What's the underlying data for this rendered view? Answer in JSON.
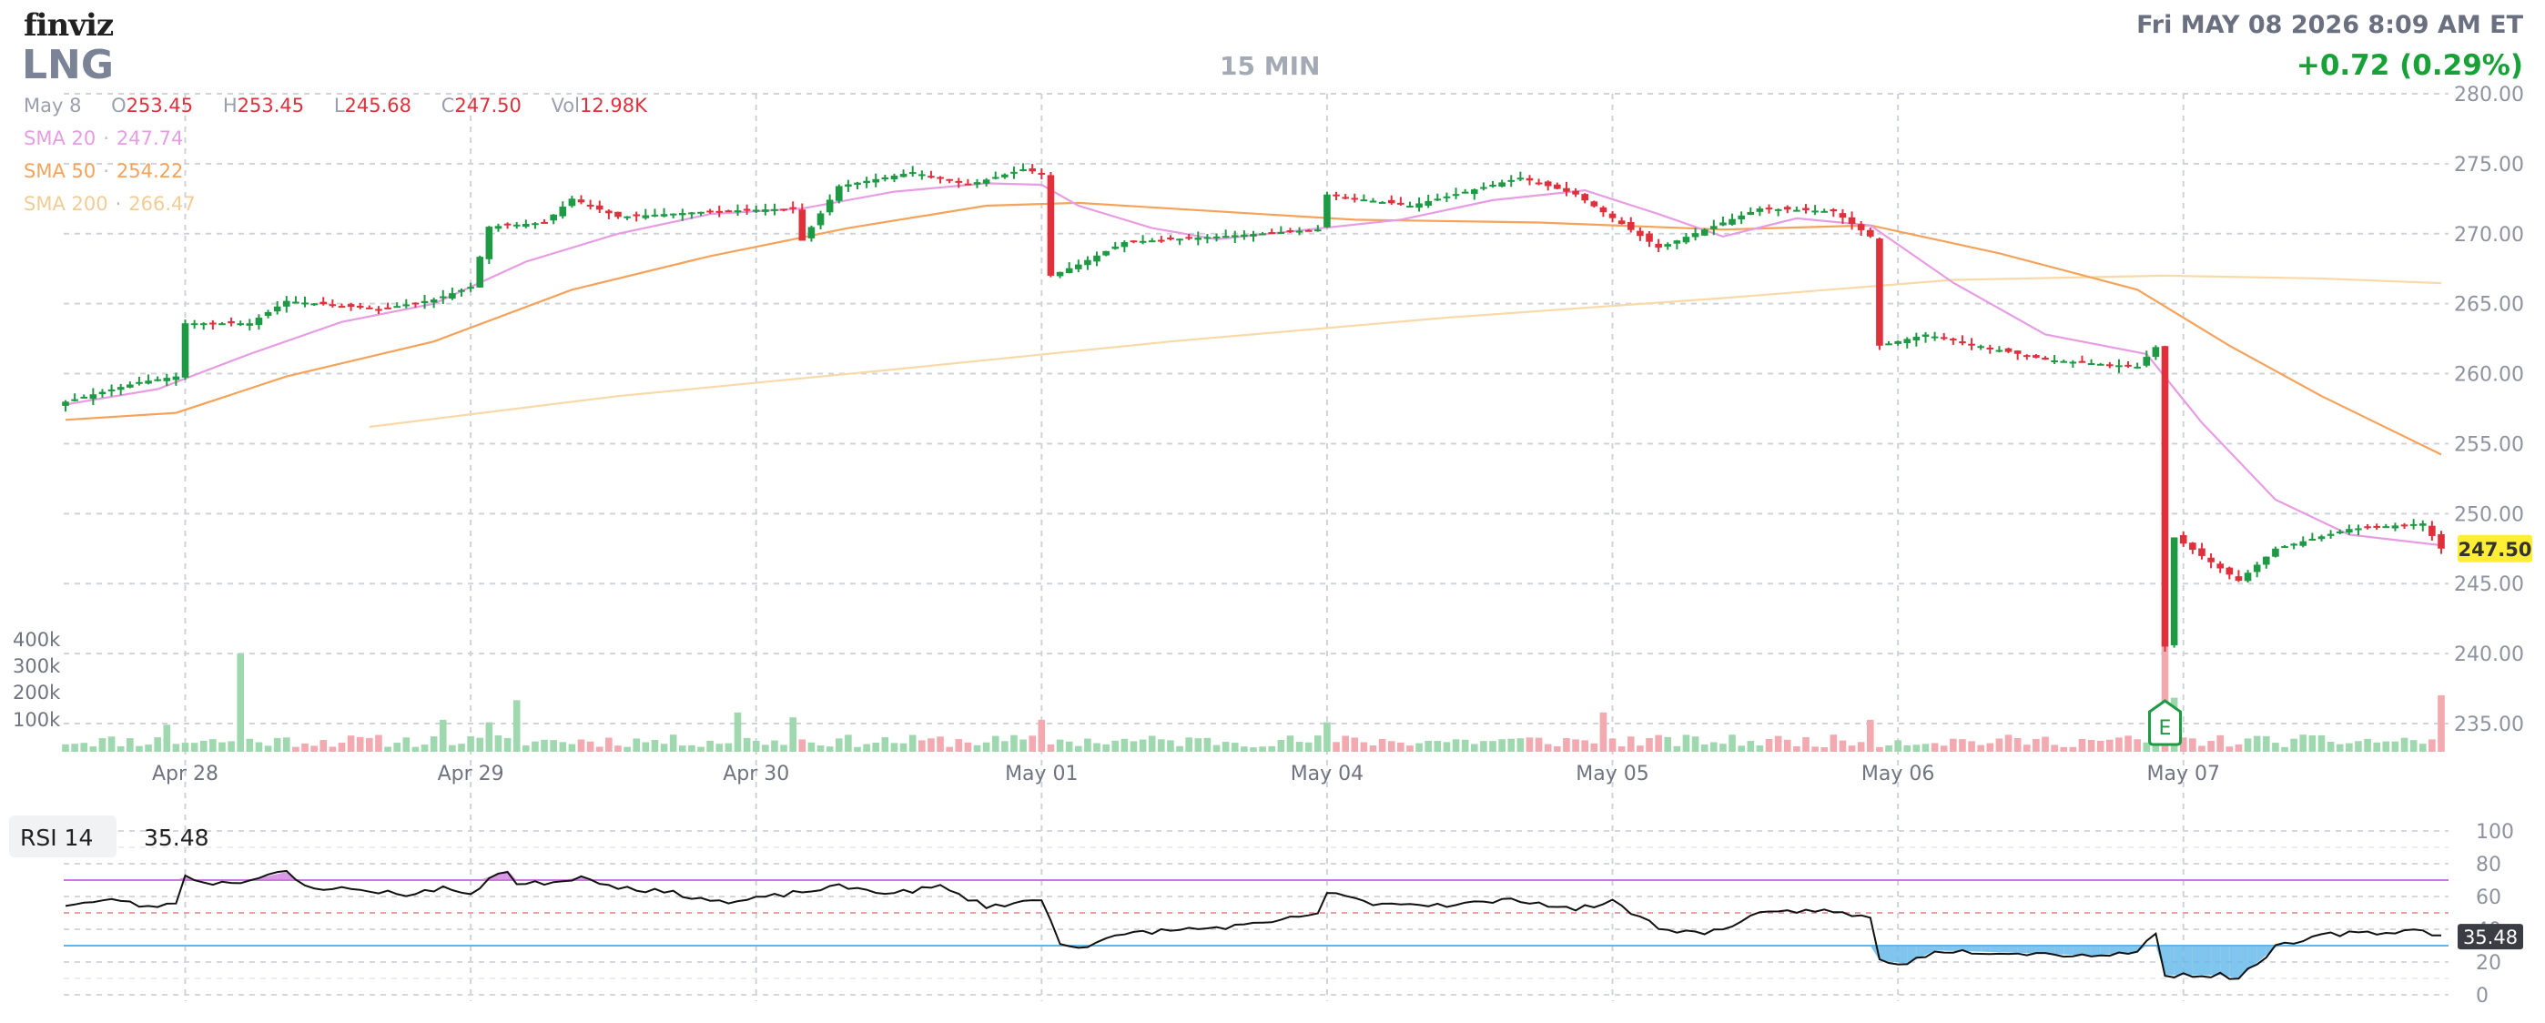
{
  "header": {
    "logo": "finviz",
    "ticker": "LNG",
    "interval": "15 MIN",
    "datetime": "Fri MAY 08 2026 8:09 AM ET",
    "change": "+0.72 (0.29%)",
    "ohlc": {
      "date": "May 8",
      "o_label": "O",
      "o": "253.45",
      "h_label": "H",
      "h": "253.45",
      "l_label": "L",
      "l": "245.68",
      "c_label": "C",
      "c": "247.50",
      "vol_label": "Vol",
      "vol": "12.98K"
    },
    "sma20": {
      "label": "SMA 20",
      "value": "247.74",
      "color": "#e79ce3"
    },
    "sma50": {
      "label": "SMA 50",
      "value": "254.22",
      "color": "#f5a25a"
    },
    "sma200": {
      "label": "SMA 200",
      "value": "266.47",
      "color": "#f9d9a8"
    }
  },
  "rsi": {
    "label": "RSI 14",
    "value": "35.48"
  },
  "colors": {
    "up": "#1d9a43",
    "down": "#e0303c",
    "vol_up": "#9fd8af",
    "vol_down": "#f2a9af",
    "rsi_line": "#111111",
    "rsi_over": "#cc77dd",
    "rsi_under": "#5fb6e8"
  },
  "chart_data": {
    "type": "candlestick",
    "interval": "15 MIN",
    "price_axis": {
      "ylim": [
        235,
        280
      ],
      "ticks": [
        "280.00",
        "275.00",
        "270.00",
        "265.00",
        "260.00",
        "255.00",
        "250.00",
        "245.00",
        "240.00",
        "235.00"
      ]
    },
    "volume_axis": {
      "ticks": [
        "400k",
        "300k",
        "200k",
        "100k"
      ]
    },
    "x_labels": [
      "Apr 28",
      "Apr 29",
      "Apr 30",
      "May 01",
      "May 04",
      "May 05",
      "May 06",
      "May 07"
    ],
    "last_price": "247.50",
    "earnings_marker": {
      "label": "E",
      "date": "May 07"
    },
    "price_path": [
      {
        "bar": 0,
        "price": 258.0
      },
      {
        "bar": 8,
        "price": 259.4
      },
      {
        "bar": 12,
        "price": 259.8
      },
      {
        "bar": 13,
        "price": 263.6
      },
      {
        "bar": 20,
        "price": 263.6
      },
      {
        "bar": 24,
        "price": 265.2
      },
      {
        "bar": 34,
        "price": 264.6
      },
      {
        "bar": 40,
        "price": 265.3
      },
      {
        "bar": 44,
        "price": 266.2
      },
      {
        "bar": 46,
        "price": 270.5
      },
      {
        "bar": 52,
        "price": 270.8
      },
      {
        "bar": 55,
        "price": 272.5
      },
      {
        "bar": 60,
        "price": 271.2
      },
      {
        "bar": 70,
        "price": 271.6
      },
      {
        "bar": 79,
        "price": 271.8
      },
      {
        "bar": 80,
        "price": 269.5
      },
      {
        "bar": 84,
        "price": 273.4
      },
      {
        "bar": 92,
        "price": 274.4
      },
      {
        "bar": 98,
        "price": 273.5
      },
      {
        "bar": 104,
        "price": 274.6
      },
      {
        "bar": 106,
        "price": 274.3
      },
      {
        "bar": 107,
        "price": 267.0
      },
      {
        "bar": 110,
        "price": 267.8
      },
      {
        "bar": 115,
        "price": 269.4
      },
      {
        "bar": 125,
        "price": 269.8
      },
      {
        "bar": 136,
        "price": 270.3
      },
      {
        "bar": 137,
        "price": 272.8
      },
      {
        "bar": 146,
        "price": 272.0
      },
      {
        "bar": 158,
        "price": 274.0
      },
      {
        "bar": 164,
        "price": 272.8
      },
      {
        "bar": 173,
        "price": 269.0
      },
      {
        "bar": 178,
        "price": 270.3
      },
      {
        "bar": 184,
        "price": 271.8
      },
      {
        "bar": 192,
        "price": 271.6
      },
      {
        "bar": 196,
        "price": 269.8
      },
      {
        "bar": 197,
        "price": 262.0
      },
      {
        "bar": 202,
        "price": 262.8
      },
      {
        "bar": 215,
        "price": 261.0
      },
      {
        "bar": 225,
        "price": 260.5
      },
      {
        "bar": 227,
        "price": 261.9
      },
      {
        "bar": 228,
        "price": 240.5
      },
      {
        "bar": 229,
        "price": 248.3
      },
      {
        "bar": 236,
        "price": 245.2
      },
      {
        "bar": 240,
        "price": 247.5
      },
      {
        "bar": 248,
        "price": 248.9
      },
      {
        "bar": 256,
        "price": 249.3
      },
      {
        "bar": 258,
        "price": 247.5
      }
    ],
    "volume_spikes": [
      {
        "bar": 11,
        "value": 110000
      },
      {
        "bar": 19,
        "value": 400000
      },
      {
        "bar": 41,
        "value": 130000
      },
      {
        "bar": 46,
        "value": 120000
      },
      {
        "bar": 49,
        "value": 210000
      },
      {
        "bar": 73,
        "value": 160000
      },
      {
        "bar": 79,
        "value": 140000
      },
      {
        "bar": 106,
        "value": 130000
      },
      {
        "bar": 137,
        "value": 120000
      },
      {
        "bar": 167,
        "value": 160000
      },
      {
        "bar": 196,
        "value": 130000
      },
      {
        "bar": 228,
        "value": 430000
      },
      {
        "bar": 229,
        "value": 220000
      },
      {
        "bar": 258,
        "value": 230000
      }
    ],
    "sma20_path": [
      {
        "bar": 0,
        "value": 257.8
      },
      {
        "bar": 10,
        "value": 258.9
      },
      {
        "bar": 20,
        "value": 261.4
      },
      {
        "bar": 30,
        "value": 263.7
      },
      {
        "bar": 40,
        "value": 265.0
      },
      {
        "bar": 50,
        "value": 268.0
      },
      {
        "bar": 60,
        "value": 270.0
      },
      {
        "bar": 70,
        "value": 271.4
      },
      {
        "bar": 80,
        "value": 271.8
      },
      {
        "bar": 90,
        "value": 273.0
      },
      {
        "bar": 100,
        "value": 273.6
      },
      {
        "bar": 106,
        "value": 273.5
      },
      {
        "bar": 110,
        "value": 272.0
      },
      {
        "bar": 118,
        "value": 270.4
      },
      {
        "bar": 125,
        "value": 269.6
      },
      {
        "bar": 135,
        "value": 270.3
      },
      {
        "bar": 145,
        "value": 271.0
      },
      {
        "bar": 155,
        "value": 272.4
      },
      {
        "bar": 165,
        "value": 273.1
      },
      {
        "bar": 173,
        "value": 271.4
      },
      {
        "bar": 180,
        "value": 269.8
      },
      {
        "bar": 188,
        "value": 271.1
      },
      {
        "bar": 196,
        "value": 270.6
      },
      {
        "bar": 205,
        "value": 266.5
      },
      {
        "bar": 215,
        "value": 262.8
      },
      {
        "bar": 226,
        "value": 261.4
      },
      {
        "bar": 232,
        "value": 256.5
      },
      {
        "bar": 240,
        "value": 251.0
      },
      {
        "bar": 248,
        "value": 248.5
      },
      {
        "bar": 258,
        "value": 247.74
      }
    ],
    "sma50_path": [
      {
        "bar": 0,
        "value": 256.7
      },
      {
        "bar": 12,
        "value": 257.2
      },
      {
        "bar": 24,
        "value": 259.8
      },
      {
        "bar": 40,
        "value": 262.3
      },
      {
        "bar": 55,
        "value": 266.0
      },
      {
        "bar": 70,
        "value": 268.4
      },
      {
        "bar": 85,
        "value": 270.4
      },
      {
        "bar": 100,
        "value": 272.0
      },
      {
        "bar": 110,
        "value": 272.2
      },
      {
        "bar": 125,
        "value": 271.6
      },
      {
        "bar": 140,
        "value": 271.0
      },
      {
        "bar": 160,
        "value": 270.8
      },
      {
        "bar": 180,
        "value": 270.3
      },
      {
        "bar": 196,
        "value": 270.6
      },
      {
        "bar": 210,
        "value": 268.6
      },
      {
        "bar": 225,
        "value": 266.0
      },
      {
        "bar": 235,
        "value": 262.0
      },
      {
        "bar": 245,
        "value": 258.4
      },
      {
        "bar": 258,
        "value": 254.22
      }
    ],
    "sma200_path": [
      {
        "bar": 33,
        "value": 256.2
      },
      {
        "bar": 60,
        "value": 258.4
      },
      {
        "bar": 90,
        "value": 260.3
      },
      {
        "bar": 120,
        "value": 262.3
      },
      {
        "bar": 150,
        "value": 264.0
      },
      {
        "bar": 180,
        "value": 265.4
      },
      {
        "bar": 205,
        "value": 266.7
      },
      {
        "bar": 228,
        "value": 267.0
      },
      {
        "bar": 245,
        "value": 266.8
      },
      {
        "bar": 258,
        "value": 266.47
      }
    ],
    "rsi_data": {
      "ylim": [
        0,
        100
      ],
      "ticks": [
        "100",
        "80",
        "60",
        "40",
        "20",
        "0"
      ],
      "overbought": 70,
      "oversold": 30,
      "midline": 50,
      "last": "35.48",
      "path": [
        {
          "bar": 0,
          "value": 55
        },
        {
          "bar": 6,
          "value": 58
        },
        {
          "bar": 9,
          "value": 53
        },
        {
          "bar": 12,
          "value": 57
        },
        {
          "bar": 13,
          "value": 72
        },
        {
          "bar": 16,
          "value": 68
        },
        {
          "bar": 20,
          "value": 70
        },
        {
          "bar": 24,
          "value": 75
        },
        {
          "bar": 26,
          "value": 66
        },
        {
          "bar": 32,
          "value": 64
        },
        {
          "bar": 38,
          "value": 61
        },
        {
          "bar": 41,
          "value": 66
        },
        {
          "bar": 44,
          "value": 60
        },
        {
          "bar": 46,
          "value": 72
        },
        {
          "bar": 48,
          "value": 76
        },
        {
          "bar": 49,
          "value": 67
        },
        {
          "bar": 53,
          "value": 69
        },
        {
          "bar": 56,
          "value": 72
        },
        {
          "bar": 60,
          "value": 66
        },
        {
          "bar": 66,
          "value": 62
        },
        {
          "bar": 72,
          "value": 56
        },
        {
          "bar": 79,
          "value": 62
        },
        {
          "bar": 84,
          "value": 66
        },
        {
          "bar": 90,
          "value": 62
        },
        {
          "bar": 95,
          "value": 66
        },
        {
          "bar": 100,
          "value": 54
        },
        {
          "bar": 106,
          "value": 58
        },
        {
          "bar": 108,
          "value": 32
        },
        {
          "bar": 110,
          "value": 29
        },
        {
          "bar": 116,
          "value": 38
        },
        {
          "bar": 125,
          "value": 41
        },
        {
          "bar": 130,
          "value": 43
        },
        {
          "bar": 136,
          "value": 50
        },
        {
          "bar": 137,
          "value": 62
        },
        {
          "bar": 142,
          "value": 56
        },
        {
          "bar": 150,
          "value": 55
        },
        {
          "bar": 158,
          "value": 58
        },
        {
          "bar": 164,
          "value": 52
        },
        {
          "bar": 168,
          "value": 57
        },
        {
          "bar": 173,
          "value": 41
        },
        {
          "bar": 178,
          "value": 37
        },
        {
          "bar": 184,
          "value": 49
        },
        {
          "bar": 190,
          "value": 52
        },
        {
          "bar": 196,
          "value": 47
        },
        {
          "bar": 197,
          "value": 21
        },
        {
          "bar": 200,
          "value": 19
        },
        {
          "bar": 203,
          "value": 27
        },
        {
          "bar": 210,
          "value": 26
        },
        {
          "bar": 220,
          "value": 24
        },
        {
          "bar": 225,
          "value": 26
        },
        {
          "bar": 227,
          "value": 38
        },
        {
          "bar": 228,
          "value": 12
        },
        {
          "bar": 234,
          "value": 12
        },
        {
          "bar": 236,
          "value": 10
        },
        {
          "bar": 240,
          "value": 29
        },
        {
          "bar": 246,
          "value": 37
        },
        {
          "bar": 252,
          "value": 38
        },
        {
          "bar": 256,
          "value": 40
        },
        {
          "bar": 258,
          "value": 35.48
        }
      ]
    }
  }
}
